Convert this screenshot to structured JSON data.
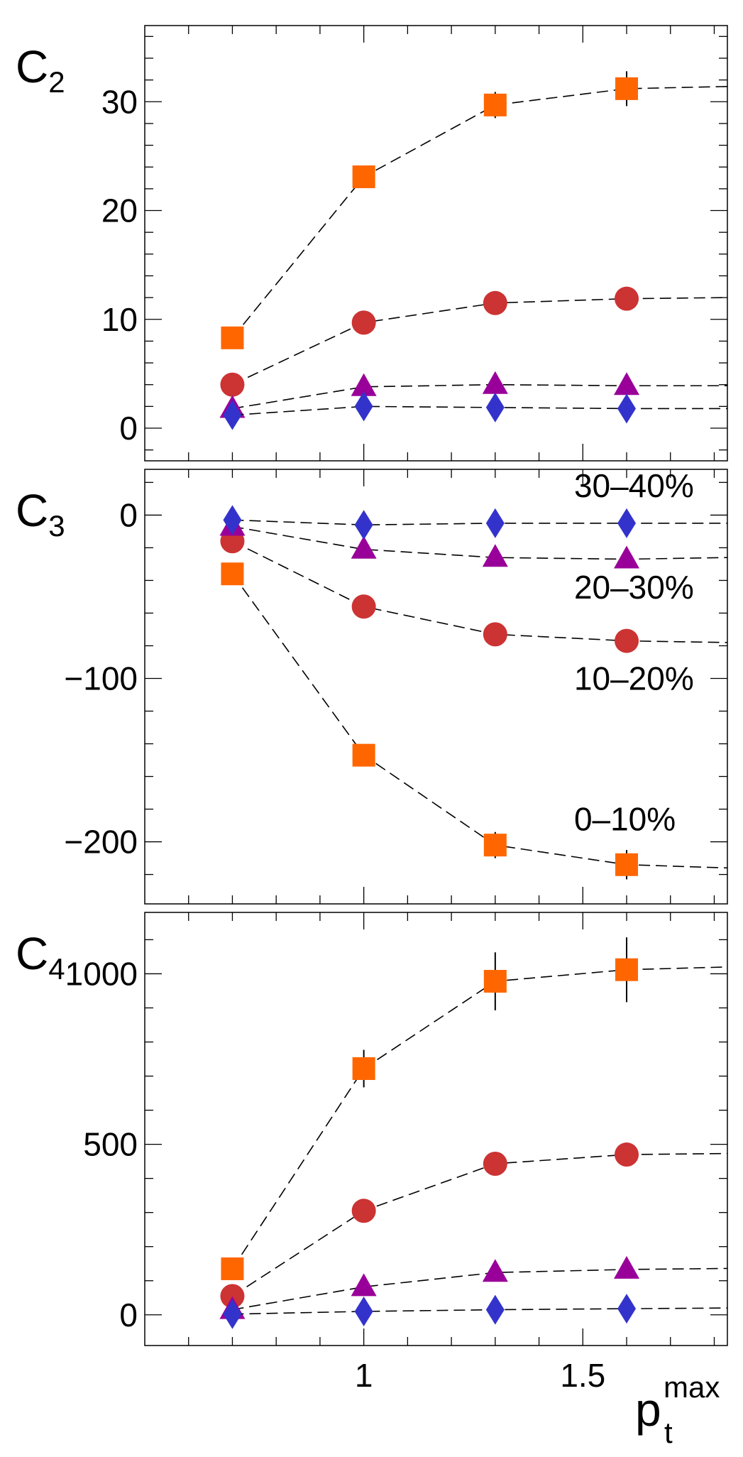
{
  "chart_data": [
    {
      "type": "line",
      "panel": "top",
      "ylabel_main": "C",
      "ylabel_sub": "2",
      "ylim": [
        -3,
        37
      ],
      "yticks": [
        0,
        10,
        20,
        30
      ],
      "ytick_labels": [
        "0",
        "10",
        "20",
        "30"
      ],
      "xlim": [
        0.5,
        1.83
      ],
      "x": [
        0.7,
        1.0,
        1.3,
        1.6,
        1.83
      ],
      "series": [
        {
          "name": "0–10%",
          "marker": "square",
          "color": "#ff6600",
          "values": [
            8.3,
            23.1,
            29.7,
            31.2,
            31.4
          ],
          "errors": [
            0.3,
            0.5,
            1.2,
            1.6,
            0
          ]
        },
        {
          "name": "10–20%",
          "marker": "circle",
          "color": "#cc3333",
          "values": [
            4.0,
            9.7,
            11.5,
            11.9,
            12.0
          ],
          "errors": [
            0,
            0,
            0,
            0,
            0
          ]
        },
        {
          "name": "20–30%",
          "marker": "triangle",
          "color": "#990099",
          "values": [
            1.8,
            3.8,
            4.0,
            3.9,
            3.9
          ],
          "errors": [
            0,
            0,
            0,
            0,
            0
          ]
        },
        {
          "name": "30–40%",
          "marker": "diamond",
          "color": "#3333cc",
          "values": [
            1.2,
            2.0,
            1.9,
            1.8,
            1.8
          ],
          "errors": [
            0,
            0,
            0,
            0,
            0
          ]
        }
      ]
    },
    {
      "type": "line",
      "panel": "middle",
      "ylabel_main": "C",
      "ylabel_sub": "3",
      "ylim": [
        -238,
        28
      ],
      "yticks": [
        0,
        -100,
        -200
      ],
      "ytick_labels": [
        "0",
        "−100",
        "−200"
      ],
      "xlim": [
        0.5,
        1.83
      ],
      "x": [
        0.7,
        1.0,
        1.3,
        1.6,
        1.83
      ],
      "series": [
        {
          "name": "0–10%",
          "marker": "square",
          "color": "#ff6600",
          "values": [
            -36,
            -147,
            -202,
            -214,
            -216
          ],
          "errors": [
            0,
            0,
            8,
            9,
            0
          ]
        },
        {
          "name": "10–20%",
          "marker": "circle",
          "color": "#cc3333",
          "values": [
            -16,
            -56,
            -73,
            -77,
            -78
          ],
          "errors": [
            0,
            0,
            0,
            0,
            0
          ]
        },
        {
          "name": "20–30%",
          "marker": "triangle",
          "color": "#990099",
          "values": [
            -7,
            -21,
            -26,
            -27,
            -26
          ],
          "errors": [
            0,
            0,
            0,
            0,
            0
          ]
        },
        {
          "name": "30–40%",
          "marker": "diamond",
          "color": "#3333cc",
          "values": [
            -3,
            -6,
            -5,
            -5,
            -5
          ],
          "errors": [
            0,
            0,
            0,
            0,
            0
          ]
        }
      ],
      "annotations": [
        {
          "text": "30–40%",
          "x": 1.48,
          "y": 11
        },
        {
          "text": "20–30%",
          "x": 1.48,
          "y": -51
        },
        {
          "text": "10–20%",
          "x": 1.48,
          "y": -107
        },
        {
          "text": "0–10%",
          "x": 1.48,
          "y": -193
        }
      ]
    },
    {
      "type": "line",
      "panel": "bottom",
      "ylabel_main": "C",
      "ylabel_sub": "4",
      "ylim": [
        -90,
        1180
      ],
      "yticks": [
        0,
        500,
        1000
      ],
      "ytick_labels": [
        "0",
        "500",
        "1000"
      ],
      "xlim": [
        0.5,
        1.83
      ],
      "xticks": [
        1,
        1.5
      ],
      "xtick_labels": [
        "1",
        "1.5"
      ],
      "xlabel_main": "p",
      "xlabel_sub": "t",
      "xlabel_sup": "max",
      "x": [
        0.7,
        1.0,
        1.3,
        1.6,
        1.83
      ],
      "series": [
        {
          "name": "0–10%",
          "marker": "square",
          "color": "#ff6600",
          "values": [
            135,
            722,
            978,
            1012,
            1020
          ],
          "errors": [
            0,
            55,
            85,
            95,
            0
          ]
        },
        {
          "name": "10–20%",
          "marker": "circle",
          "color": "#cc3333",
          "values": [
            55,
            305,
            443,
            470,
            473
          ],
          "errors": [
            0,
            0,
            0,
            0,
            0
          ]
        },
        {
          "name": "20–30%",
          "marker": "triangle",
          "color": "#990099",
          "values": [
            15,
            82,
            124,
            133,
            136
          ],
          "errors": [
            0,
            0,
            0,
            0,
            0
          ]
        },
        {
          "name": "30–40%",
          "marker": "diamond",
          "color": "#3333cc",
          "values": [
            2,
            10,
            15,
            18,
            20
          ],
          "errors": [
            0,
            0,
            0,
            0,
            0
          ]
        }
      ]
    }
  ]
}
